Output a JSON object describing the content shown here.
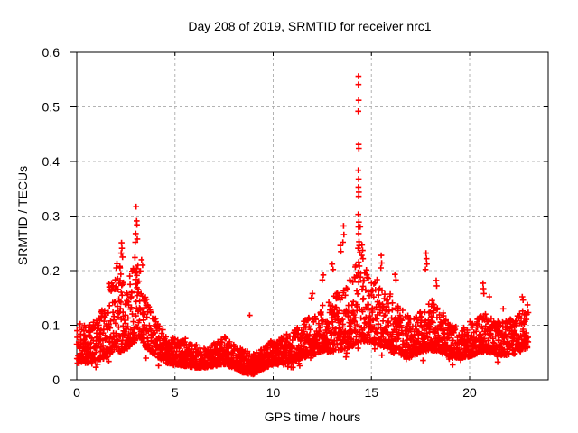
{
  "chart_data": {
    "type": "scatter",
    "title": "Day 208 of 2019, SRMTID for receiver nrc1",
    "xlabel": "GPS time / hours",
    "ylabel": "SRMTID / TECUs",
    "xlim": [
      0,
      24
    ],
    "ylim": [
      0,
      0.6
    ],
    "xticks": [
      0,
      5,
      10,
      15,
      20
    ],
    "xtick_labels": [
      "0",
      "5",
      "10",
      "15",
      "20"
    ],
    "yticks": [
      0,
      0.1,
      0.2,
      0.3,
      0.4,
      0.5,
      0.6
    ],
    "ytick_labels": [
      "0",
      "0.1",
      "0.2",
      "0.3",
      "0.4",
      "0.5",
      "0.6"
    ],
    "grid": "dashed, at all major ticks",
    "legend": "none",
    "marker": "plus",
    "marker_color": "#ff0000",
    "grid_color": "#b3b3b3",
    "frame_color": "#000000",
    "background_color": "#ffffff",
    "data_start_hour": 0.0,
    "data_end_hour": 23.0,
    "points_per_hour": 120,
    "seed": 42,
    "skew_exponent": 1.65,
    "band_envelope_hour_lo_hi": [
      [
        0.0,
        0.035,
        0.105
      ],
      [
        0.5,
        0.03,
        0.1
      ],
      [
        1.0,
        0.035,
        0.115
      ],
      [
        1.5,
        0.04,
        0.14
      ],
      [
        1.8,
        0.05,
        0.2
      ],
      [
        2.1,
        0.05,
        0.22
      ],
      [
        2.4,
        0.05,
        0.18
      ],
      [
        2.7,
        0.06,
        0.19
      ],
      [
        3.0,
        0.07,
        0.24
      ],
      [
        3.2,
        0.08,
        0.22
      ],
      [
        3.5,
        0.06,
        0.16
      ],
      [
        3.8,
        0.05,
        0.12
      ],
      [
        4.2,
        0.04,
        0.1
      ],
      [
        4.6,
        0.03,
        0.085
      ],
      [
        5.0,
        0.028,
        0.075
      ],
      [
        5.5,
        0.025,
        0.07
      ],
      [
        6.0,
        0.022,
        0.065
      ],
      [
        6.5,
        0.022,
        0.06
      ],
      [
        7.0,
        0.025,
        0.07
      ],
      [
        7.5,
        0.028,
        0.08
      ],
      [
        8.0,
        0.022,
        0.065
      ],
      [
        8.5,
        0.012,
        0.055
      ],
      [
        9.0,
        0.01,
        0.05
      ],
      [
        9.5,
        0.02,
        0.06
      ],
      [
        10.0,
        0.028,
        0.075
      ],
      [
        10.5,
        0.03,
        0.08
      ],
      [
        11.0,
        0.032,
        0.09
      ],
      [
        11.5,
        0.04,
        0.105
      ],
      [
        12.0,
        0.045,
        0.125
      ],
      [
        12.5,
        0.05,
        0.14
      ],
      [
        13.0,
        0.05,
        0.15
      ],
      [
        13.5,
        0.055,
        0.17
      ],
      [
        14.0,
        0.06,
        0.19
      ],
      [
        14.4,
        0.07,
        0.24
      ],
      [
        14.8,
        0.07,
        0.21
      ],
      [
        15.2,
        0.065,
        0.19
      ],
      [
        15.6,
        0.06,
        0.17
      ],
      [
        16.0,
        0.05,
        0.15
      ],
      [
        16.5,
        0.045,
        0.13
      ],
      [
        17.0,
        0.04,
        0.115
      ],
      [
        17.5,
        0.05,
        0.125
      ],
      [
        18.0,
        0.055,
        0.15
      ],
      [
        18.5,
        0.05,
        0.13
      ],
      [
        19.0,
        0.04,
        0.105
      ],
      [
        19.5,
        0.04,
        0.095
      ],
      [
        20.0,
        0.042,
        0.1
      ],
      [
        20.5,
        0.05,
        0.115
      ],
      [
        21.0,
        0.05,
        0.125
      ],
      [
        21.5,
        0.045,
        0.105
      ],
      [
        22.0,
        0.045,
        0.11
      ],
      [
        22.5,
        0.05,
        0.12
      ],
      [
        23.0,
        0.06,
        0.135
      ]
    ],
    "notable_points_hour_value": [
      [
        3.02,
        0.317
      ],
      [
        3.05,
        0.291
      ],
      [
        3.06,
        0.284
      ],
      [
        3.0,
        0.268
      ],
      [
        3.08,
        0.258
      ],
      [
        2.98,
        0.252
      ],
      [
        2.28,
        0.251
      ],
      [
        2.3,
        0.241
      ],
      [
        2.26,
        0.232
      ],
      [
        2.33,
        0.225
      ],
      [
        3.3,
        0.22
      ],
      [
        3.35,
        0.21
      ],
      [
        14.34,
        0.556
      ],
      [
        14.34,
        0.541
      ],
      [
        14.35,
        0.512
      ],
      [
        14.33,
        0.492
      ],
      [
        14.35,
        0.431
      ],
      [
        14.36,
        0.424
      ],
      [
        14.33,
        0.384
      ],
      [
        14.35,
        0.368
      ],
      [
        14.34,
        0.353
      ],
      [
        14.36,
        0.344
      ],
      [
        14.35,
        0.336
      ],
      [
        14.33,
        0.303
      ],
      [
        14.36,
        0.289
      ],
      [
        14.34,
        0.28
      ],
      [
        14.35,
        0.268
      ],
      [
        14.37,
        0.253
      ],
      [
        14.38,
        0.246
      ],
      [
        14.32,
        0.241
      ],
      [
        14.52,
        0.247
      ],
      [
        14.55,
        0.237
      ],
      [
        14.5,
        0.228
      ],
      [
        14.57,
        0.222
      ],
      [
        15.5,
        0.228
      ],
      [
        15.52,
        0.214
      ],
      [
        15.48,
        0.205
      ],
      [
        13.58,
        0.282
      ],
      [
        13.6,
        0.266
      ],
      [
        13.55,
        0.252
      ],
      [
        13.42,
        0.246
      ],
      [
        13.45,
        0.235
      ],
      [
        13.0,
        0.212
      ],
      [
        13.05,
        0.202
      ],
      [
        12.55,
        0.192
      ],
      [
        12.5,
        0.183
      ],
      [
        12.0,
        0.158
      ],
      [
        11.95,
        0.15
      ],
      [
        16.2,
        0.193
      ],
      [
        16.25,
        0.183
      ],
      [
        17.78,
        0.232
      ],
      [
        17.8,
        0.222
      ],
      [
        17.82,
        0.212
      ],
      [
        17.75,
        0.202
      ],
      [
        18.3,
        0.182
      ],
      [
        18.32,
        0.172
      ],
      [
        20.68,
        0.177
      ],
      [
        20.7,
        0.167
      ],
      [
        20.72,
        0.158
      ],
      [
        21.0,
        0.152
      ],
      [
        22.68,
        0.152
      ],
      [
        22.72,
        0.146
      ],
      [
        8.8,
        0.118
      ]
    ]
  }
}
